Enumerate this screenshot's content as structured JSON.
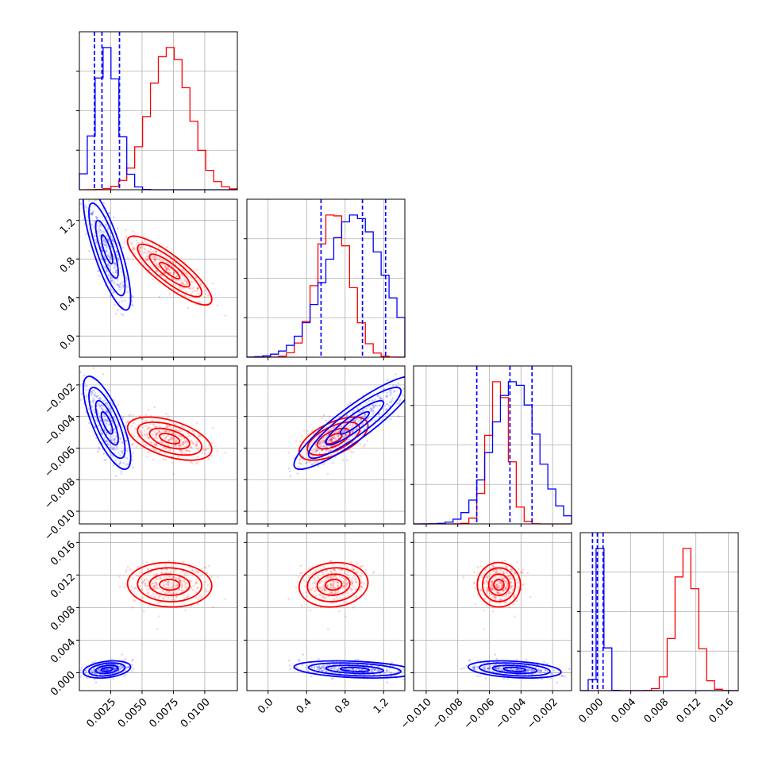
{
  "chart_data": {
    "type": "corner",
    "colors": {
      "red": "#ff0000",
      "blue": "#0000ff"
    },
    "parameters": [
      {
        "range": [
          0.0,
          0.0126
        ],
        "ticks": [
          0.0025,
          0.005,
          0.0075,
          0.01
        ],
        "tick_labels": [
          "0.0025",
          "0.0050",
          "0.0075",
          "0.0100"
        ]
      },
      {
        "range": [
          -0.22,
          1.42
        ],
        "ticks": [
          0.0,
          0.4,
          0.8,
          1.2
        ],
        "tick_labels": [
          "0.0",
          "0.4",
          "0.8",
          "1.2"
        ]
      },
      {
        "range": [
          -0.0108,
          -0.0008
        ],
        "ticks": [
          -0.01,
          -0.008,
          -0.006,
          -0.004,
          -0.002
        ],
        "tick_labels": [
          "−0.010",
          "−0.008",
          "−0.006",
          "−0.004",
          "−0.002"
        ]
      },
      {
        "range": [
          -0.0022,
          0.0172
        ],
        "ticks": [
          0.0,
          0.004,
          0.008,
          0.012,
          0.016
        ],
        "tick_labels": [
          "0.000",
          "0.004",
          "0.008",
          "0.012",
          "0.016"
        ]
      }
    ],
    "series": [
      {
        "color": "#ff0000",
        "means": [
          0.0072,
          0.68,
          -0.0054,
          0.0108
        ],
        "sds": [
          0.0016,
          0.17,
          0.00065,
          0.0013
        ],
        "corr": {
          "0-1": -0.85,
          "0-2": -0.5,
          "0-3": -0.05,
          "1-2": 0.6,
          "1-3": 0.1,
          "2-3": 0.0
        },
        "quantiles": null
      },
      {
        "color": "#0000ff",
        "means": [
          0.0022,
          0.9,
          -0.0044,
          0.0004
        ],
        "sds": [
          0.0009,
          0.3,
          0.0014,
          0.0005
        ],
        "corr": {
          "0-1": -0.8,
          "0-2": -0.75,
          "0-3": 0.3,
          "1-2": 0.9,
          "1-3": -0.3,
          "2-3": -0.3
        },
        "quantiles": [
          [
            0.0012,
            0.0018,
            0.0032
          ],
          [
            0.55,
            0.98,
            1.22
          ],
          [
            -0.0068,
            -0.0047,
            -0.0033
          ],
          [
            -0.0007,
            -0.0001,
            0.0006
          ]
        ]
      }
    ],
    "grid": true,
    "hist_bins": 20
  }
}
